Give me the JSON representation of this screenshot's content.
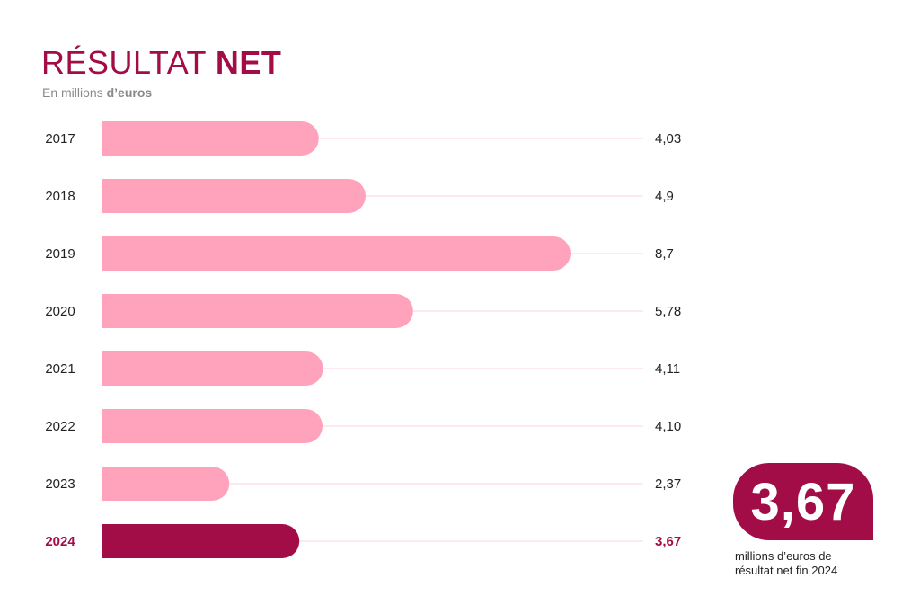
{
  "header": {
    "title_part1": "RÉSULTAT",
    "title_part2": "NET",
    "subtitle_part1": "En millions",
    "subtitle_part2": "d’euros"
  },
  "colors": {
    "bar": "#ffa3bd",
    "highlight_bar": "#a30d47",
    "guide_line": "#ffd3e0",
    "label": "#222222",
    "highlight_label": "#a30d47"
  },
  "chart_data": {
    "type": "bar",
    "orientation": "horizontal",
    "categories": [
      "2017",
      "2018",
      "2019",
      "2020",
      "2021",
      "2022",
      "2023",
      "2024"
    ],
    "values": [
      4.03,
      4.9,
      8.7,
      5.78,
      4.11,
      4.1,
      2.37,
      3.67
    ],
    "value_labels": [
      "4,03",
      "4,9",
      "8,7",
      "5,78",
      "4,11",
      "4,10",
      "2,37",
      "3,67"
    ],
    "highlighted_category": "2024",
    "xlim": [
      0,
      8.7
    ]
  },
  "highlight": {
    "value": "3,67",
    "caption_line1": "millions d’euros de",
    "caption_line2": "résultat net fin 2024"
  }
}
